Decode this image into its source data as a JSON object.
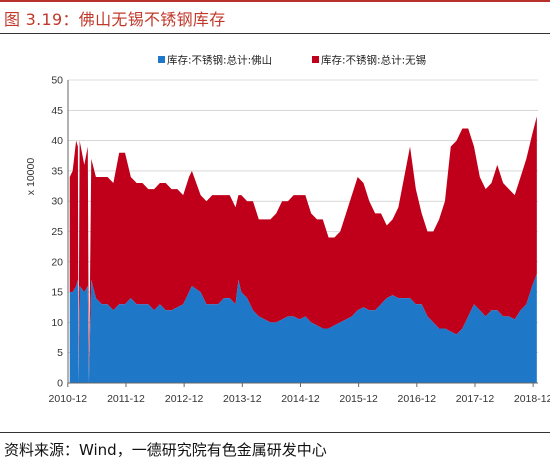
{
  "figure": {
    "title": "图 3.19：佛山无锡不锈钢库存",
    "source": "资料来源：Wind，一德研究院有色金属研发中心"
  },
  "chart_data": {
    "type": "area",
    "stacked": true,
    "ylabel": "x 10000",
    "ylim": [
      0,
      50
    ],
    "yticks": [
      0,
      5,
      10,
      15,
      20,
      25,
      30,
      35,
      40,
      45,
      50
    ],
    "xlim": [
      2010.92,
      2019.0
    ],
    "xticks": [
      "2010-12",
      "2011-12",
      "2012-12",
      "2013-12",
      "2014-12",
      "2015-12",
      "2016-12",
      "2017-12",
      "2018-12"
    ],
    "legend_position": "top",
    "series": [
      {
        "name": "库存:不锈钢:总计:佛山",
        "color": "#1f77c8",
        "points": [
          [
            2010.95,
            15
          ],
          [
            2011.0,
            15
          ],
          [
            2011.06,
            16
          ],
          [
            2011.09,
            17
          ],
          [
            2011.1,
            0
          ],
          [
            2011.12,
            16
          ],
          [
            2011.2,
            15
          ],
          [
            2011.26,
            16
          ],
          [
            2011.28,
            0
          ],
          [
            2011.32,
            17
          ],
          [
            2011.4,
            14
          ],
          [
            2011.5,
            13
          ],
          [
            2011.6,
            13
          ],
          [
            2011.7,
            12
          ],
          [
            2011.8,
            13
          ],
          [
            2011.9,
            13
          ],
          [
            2012.0,
            14
          ],
          [
            2012.1,
            13
          ],
          [
            2012.2,
            13
          ],
          [
            2012.3,
            13
          ],
          [
            2012.4,
            12
          ],
          [
            2012.5,
            13
          ],
          [
            2012.6,
            12
          ],
          [
            2012.7,
            12
          ],
          [
            2012.8,
            12.5
          ],
          [
            2012.9,
            13
          ],
          [
            2013.0,
            15
          ],
          [
            2013.05,
            16
          ],
          [
            2013.2,
            15
          ],
          [
            2013.3,
            13
          ],
          [
            2013.4,
            13
          ],
          [
            2013.5,
            13
          ],
          [
            2013.6,
            14
          ],
          [
            2013.7,
            14
          ],
          [
            2013.8,
            13
          ],
          [
            2013.85,
            17
          ],
          [
            2013.9,
            15
          ],
          [
            2014.0,
            14
          ],
          [
            2014.1,
            12
          ],
          [
            2014.2,
            11
          ],
          [
            2014.3,
            10.5
          ],
          [
            2014.4,
            10
          ],
          [
            2014.5,
            10
          ],
          [
            2014.6,
            10.5
          ],
          [
            2014.7,
            11
          ],
          [
            2014.8,
            11
          ],
          [
            2014.9,
            10.5
          ],
          [
            2015.0,
            11
          ],
          [
            2015.1,
            10
          ],
          [
            2015.2,
            9.5
          ],
          [
            2015.3,
            9
          ],
          [
            2015.4,
            9
          ],
          [
            2015.5,
            9.5
          ],
          [
            2015.6,
            10
          ],
          [
            2015.7,
            10.5
          ],
          [
            2015.8,
            11
          ],
          [
            2015.9,
            12
          ],
          [
            2016.0,
            12.5
          ],
          [
            2016.1,
            12
          ],
          [
            2016.2,
            12
          ],
          [
            2016.3,
            13
          ],
          [
            2016.4,
            14
          ],
          [
            2016.5,
            14.5
          ],
          [
            2016.6,
            14
          ],
          [
            2016.7,
            14
          ],
          [
            2016.8,
            14
          ],
          [
            2016.9,
            13
          ],
          [
            2017.0,
            13
          ],
          [
            2017.1,
            11
          ],
          [
            2017.2,
            10
          ],
          [
            2017.3,
            9
          ],
          [
            2017.4,
            9
          ],
          [
            2017.5,
            8.5
          ],
          [
            2017.6,
            8
          ],
          [
            2017.7,
            9
          ],
          [
            2017.8,
            11
          ],
          [
            2017.9,
            13
          ],
          [
            2018.0,
            12
          ],
          [
            2018.1,
            11
          ],
          [
            2018.2,
            12
          ],
          [
            2018.3,
            12
          ],
          [
            2018.4,
            11
          ],
          [
            2018.5,
            11
          ],
          [
            2018.6,
            10.5
          ],
          [
            2018.7,
            12
          ],
          [
            2018.8,
            13
          ],
          [
            2018.9,
            16
          ],
          [
            2018.98,
            18
          ]
        ]
      },
      {
        "name": "库存:不锈钢:总计:无锡",
        "color": "#c0001a",
        "points": [
          [
            2010.95,
            19
          ],
          [
            2011.0,
            20
          ],
          [
            2011.06,
            24
          ],
          [
            2011.09,
            22
          ],
          [
            2011.1,
            0
          ],
          [
            2011.12,
            24
          ],
          [
            2011.2,
            21
          ],
          [
            2011.26,
            23
          ],
          [
            2011.28,
            0
          ],
          [
            2011.32,
            20
          ],
          [
            2011.4,
            20
          ],
          [
            2011.5,
            21
          ],
          [
            2011.6,
            21
          ],
          [
            2011.7,
            21
          ],
          [
            2011.8,
            25
          ],
          [
            2011.9,
            25
          ],
          [
            2012.0,
            20
          ],
          [
            2012.1,
            20
          ],
          [
            2012.2,
            20
          ],
          [
            2012.3,
            19
          ],
          [
            2012.4,
            20
          ],
          [
            2012.5,
            20
          ],
          [
            2012.6,
            21
          ],
          [
            2012.7,
            20
          ],
          [
            2012.8,
            19.5
          ],
          [
            2012.9,
            18
          ],
          [
            2013.0,
            19
          ],
          [
            2013.05,
            19
          ],
          [
            2013.2,
            16
          ],
          [
            2013.3,
            17
          ],
          [
            2013.4,
            18
          ],
          [
            2013.5,
            18
          ],
          [
            2013.6,
            17
          ],
          [
            2013.7,
            17
          ],
          [
            2013.8,
            16
          ],
          [
            2013.85,
            14
          ],
          [
            2013.9,
            16
          ],
          [
            2014.0,
            16
          ],
          [
            2014.1,
            18
          ],
          [
            2014.2,
            16
          ],
          [
            2014.3,
            16.5
          ],
          [
            2014.4,
            17
          ],
          [
            2014.5,
            18
          ],
          [
            2014.6,
            19.5
          ],
          [
            2014.7,
            19
          ],
          [
            2014.8,
            20
          ],
          [
            2014.9,
            20.5
          ],
          [
            2015.0,
            20
          ],
          [
            2015.1,
            18
          ],
          [
            2015.2,
            17.5
          ],
          [
            2015.3,
            18
          ],
          [
            2015.4,
            15
          ],
          [
            2015.5,
            14.5
          ],
          [
            2015.6,
            15
          ],
          [
            2015.7,
            17.5
          ],
          [
            2015.8,
            20
          ],
          [
            2015.9,
            22
          ],
          [
            2016.0,
            20.5
          ],
          [
            2016.1,
            18
          ],
          [
            2016.2,
            16
          ],
          [
            2016.3,
            15
          ],
          [
            2016.4,
            12
          ],
          [
            2016.5,
            12.5
          ],
          [
            2016.6,
            15
          ],
          [
            2016.7,
            20
          ],
          [
            2016.8,
            25
          ],
          [
            2016.9,
            19
          ],
          [
            2017.0,
            15
          ],
          [
            2017.1,
            14
          ],
          [
            2017.2,
            15
          ],
          [
            2017.3,
            18
          ],
          [
            2017.4,
            21
          ],
          [
            2017.5,
            30.5
          ],
          [
            2017.6,
            32
          ],
          [
            2017.7,
            33
          ],
          [
            2017.8,
            31
          ],
          [
            2017.9,
            26
          ],
          [
            2018.0,
            22
          ],
          [
            2018.1,
            21
          ],
          [
            2018.2,
            21
          ],
          [
            2018.3,
            24
          ],
          [
            2018.4,
            22
          ],
          [
            2018.5,
            21
          ],
          [
            2018.6,
            20.5
          ],
          [
            2018.7,
            22
          ],
          [
            2018.8,
            24
          ],
          [
            2018.9,
            25
          ],
          [
            2018.98,
            26
          ]
        ]
      }
    ]
  }
}
